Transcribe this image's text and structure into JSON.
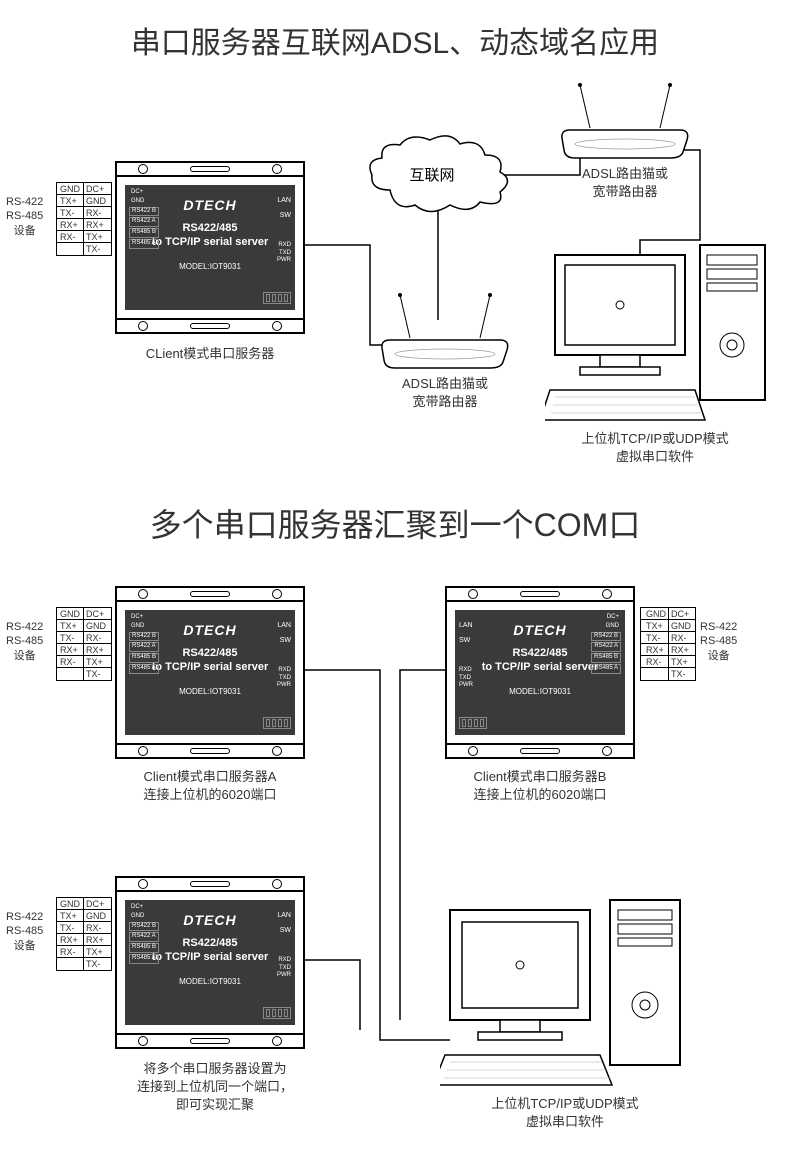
{
  "colors": {
    "bg": "#ffffff",
    "line": "#000000",
    "deviceScreen": "#3a3a3a",
    "text": "#333333"
  },
  "diagram1": {
    "title": "串口服务器互联网ADSL、动态域名应用",
    "title_fontsize": 30,
    "device": {
      "brand": "DTECH",
      "product_line1": "RS422/485",
      "product_line2": "to TCP/IP serial server",
      "model": "MODEL:IOT9031",
      "left_pins": [
        "DC+",
        "GND",
        "RX-",
        "RX+",
        "TX+",
        "TX-"
      ],
      "screen_left_labels": [
        "RS422 B",
        "RS422 A",
        "RS485 B",
        "RS485 A"
      ],
      "right_side": [
        "LAN",
        "SW"
      ],
      "right_leds": [
        "RXD",
        "TXD",
        "PWR"
      ]
    },
    "terminal": {
      "port_label": "RS-422\nRS-485\n设备",
      "rows": [
        [
          "GND",
          "DC+"
        ],
        [
          "TX+",
          "GND"
        ],
        [
          "TX-",
          "RX-"
        ],
        [
          "RX+",
          "RX+"
        ],
        [
          "RX-",
          "TX+"
        ],
        [
          "",
          "TX-"
        ]
      ]
    },
    "cloud_label": "互联网",
    "router_label": "ADSL路由猫或\n宽带路由器",
    "device_caption": "CLient模式串口服务器",
    "computer_caption": "上位机TCP/IP或UDP模式\n虚拟串口软件"
  },
  "diagram2": {
    "title": "多个串口服务器汇聚到一个COM口",
    "title_fontsize": 32,
    "deviceA_caption": "Client模式串口服务器A\n连接上位机的6020端口",
    "deviceB_caption": "Client模式串口服务器B\n连接上位机的6020端口",
    "deviceC_caption": "将多个串口服务器设置为\n连接到上位机同一个端口，\n即可实现汇聚",
    "computer_caption": "上位机TCP/IP或UDP模式\n虚拟串口软件"
  }
}
